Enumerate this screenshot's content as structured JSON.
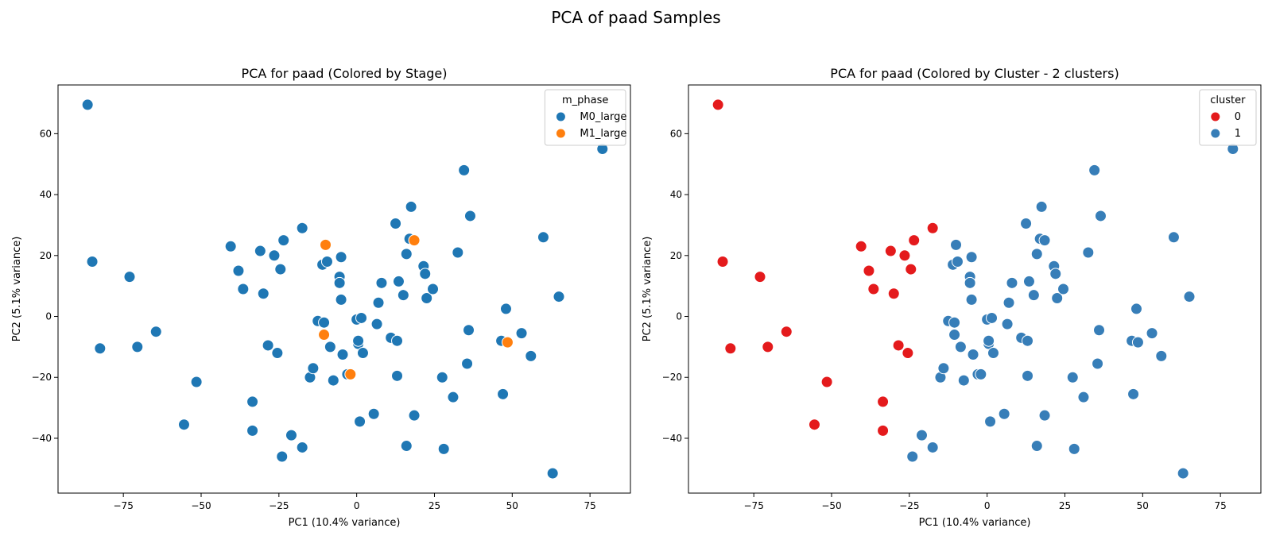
{
  "figure": {
    "title": "PCA of paad Samples"
  },
  "chart_data": [
    {
      "type": "scatter",
      "title": "PCA for paad (Colored by Stage)",
      "xlabel": "PC1 (10.4% variance)",
      "ylabel": "PC2 (5.1% variance)",
      "xlim": [
        -96,
        88
      ],
      "ylim": [
        -58,
        76
      ],
      "xticks": [
        -75,
        -50,
        -25,
        0,
        25,
        50,
        75
      ],
      "yticks": [
        -40,
        -20,
        0,
        20,
        40,
        60
      ],
      "grid": false,
      "legend": {
        "title": "m_phase",
        "placement": "top-right"
      },
      "series": [
        {
          "name": "M0_large",
          "color": "#1f77b4",
          "x": [
            -86.5,
            -85.0,
            -82.5,
            -73.0,
            -70.5,
            -64.5,
            -55.5,
            -51.5,
            -40.5,
            -38.0,
            -36.5,
            -33.5,
            -33.5,
            -31.0,
            -30.0,
            -28.5,
            -26.5,
            -25.5,
            -24.5,
            -24.0,
            -23.5,
            -21.0,
            -17.5,
            -17.5,
            -15.0,
            -14.0,
            -12.5,
            -11.0,
            -10.5,
            -9.5,
            -8.5,
            -7.5,
            -5.5,
            -5.5,
            -5.0,
            -5.0,
            -4.5,
            -3.0,
            0.0,
            0.5,
            0.5,
            1.0,
            1.5,
            2.0,
            5.5,
            6.5,
            7.0,
            8.0,
            11.0,
            12.5,
            13.0,
            13.0,
            13.5,
            15.0,
            16.0,
            16.0,
            17.0,
            17.5,
            18.5,
            21.5,
            22.0,
            22.5,
            24.5,
            27.5,
            28.0,
            31.0,
            32.5,
            34.5,
            35.5,
            36.0,
            36.5,
            46.5,
            47.0,
            48.0,
            53.0,
            56.0,
            60.0,
            63.0,
            65.0,
            79.0
          ],
          "y": [
            69.5,
            18.0,
            -10.5,
            13.0,
            -10.0,
            -5.0,
            -35.5,
            -21.5,
            23.0,
            15.0,
            9.0,
            -28.0,
            -37.5,
            21.5,
            7.5,
            -9.5,
            20.0,
            -12.0,
            15.5,
            -46.0,
            25.0,
            -39.0,
            29.0,
            -43.0,
            -20.0,
            -17.0,
            -1.5,
            17.0,
            -2.0,
            18.0,
            -10.0,
            -21.0,
            13.0,
            11.0,
            19.5,
            5.5,
            -12.5,
            -19.0,
            -1.0,
            -9.0,
            -8.0,
            -34.5,
            -0.5,
            -12.0,
            -32.0,
            -2.5,
            4.5,
            11.0,
            -7.0,
            30.5,
            -8.0,
            -19.5,
            11.5,
            7.0,
            20.5,
            -42.5,
            25.5,
            36.0,
            -32.5,
            16.5,
            14.0,
            6.0,
            9.0,
            -20.0,
            -43.5,
            -26.5,
            21.0,
            48.0,
            -15.5,
            -4.5,
            33.0,
            -8.0,
            -25.5,
            2.5,
            -5.5,
            -13.0,
            26.0,
            -51.5,
            6.5,
            55.0
          ]
        },
        {
          "name": "M1_large",
          "color": "#ff7f0e",
          "x": [
            -10.0,
            -10.5,
            -2.0,
            18.5,
            48.5
          ],
          "y": [
            23.5,
            -6.0,
            -19.0,
            25.0,
            -8.5
          ]
        }
      ]
    },
    {
      "type": "scatter",
      "title": "PCA for paad (Colored by Cluster - 2 clusters)",
      "xlabel": "PC1 (10.4% variance)",
      "ylabel": "PC2 (5.1% variance)",
      "xlim": [
        -96,
        88
      ],
      "ylim": [
        -58,
        76
      ],
      "xticks": [
        -75,
        -50,
        -25,
        0,
        25,
        50,
        75
      ],
      "yticks": [
        -40,
        -20,
        0,
        20,
        40,
        60
      ],
      "grid": false,
      "legend": {
        "title": "cluster",
        "placement": "top-right"
      },
      "series": [
        {
          "name": "0",
          "color": "#e41a1c",
          "x": [
            -86.5,
            -85.0,
            -82.5,
            -73.0,
            -70.5,
            -64.5,
            -55.5,
            -51.5,
            -40.5,
            -38.0,
            -36.5,
            -33.5,
            -33.5,
            -31.0,
            -30.0,
            -28.5,
            -26.5,
            -25.5,
            -24.5,
            -23.5,
            -17.5
          ],
          "y": [
            69.5,
            18.0,
            -10.5,
            13.0,
            -10.0,
            -5.0,
            -35.5,
            -21.5,
            23.0,
            15.0,
            9.0,
            -28.0,
            -37.5,
            21.5,
            7.5,
            -9.5,
            20.0,
            -12.0,
            15.5,
            25.0,
            29.0
          ]
        },
        {
          "name": "1",
          "color": "#377eb8",
          "x": [
            -24.0,
            -21.0,
            -17.5,
            -15.0,
            -14.0,
            -12.5,
            -11.0,
            -10.5,
            -10.0,
            -10.5,
            -9.5,
            -8.5,
            -7.5,
            -5.5,
            -5.5,
            -5.0,
            -5.0,
            -4.5,
            -3.0,
            -2.0,
            0.0,
            0.5,
            0.5,
            1.0,
            1.5,
            2.0,
            5.5,
            6.5,
            7.0,
            8.0,
            11.0,
            12.5,
            13.0,
            13.0,
            13.5,
            15.0,
            16.0,
            16.0,
            17.0,
            17.5,
            18.5,
            18.5,
            21.5,
            22.0,
            22.5,
            24.5,
            27.5,
            28.0,
            31.0,
            32.5,
            34.5,
            35.5,
            36.0,
            36.5,
            46.5,
            47.0,
            48.0,
            48.5,
            53.0,
            56.0,
            60.0,
            63.0,
            65.0,
            79.0
          ],
          "y": [
            -46.0,
            -39.0,
            -43.0,
            -20.0,
            -17.0,
            -1.5,
            17.0,
            -2.0,
            23.5,
            -6.0,
            18.0,
            -10.0,
            -21.0,
            13.0,
            11.0,
            19.5,
            5.5,
            -12.5,
            -19.0,
            -19.0,
            -1.0,
            -9.0,
            -8.0,
            -34.5,
            -0.5,
            -12.0,
            -32.0,
            -2.5,
            4.5,
            11.0,
            -7.0,
            30.5,
            -8.0,
            -19.5,
            11.5,
            7.0,
            20.5,
            -42.5,
            25.5,
            36.0,
            -32.5,
            25.0,
            16.5,
            14.0,
            6.0,
            9.0,
            -20.0,
            -43.5,
            -26.5,
            21.0,
            48.0,
            -15.5,
            -4.5,
            33.0,
            -8.0,
            -25.5,
            2.5,
            -8.5,
            -5.5,
            -13.0,
            26.0,
            -51.5,
            6.5,
            55.0
          ]
        }
      ]
    }
  ]
}
